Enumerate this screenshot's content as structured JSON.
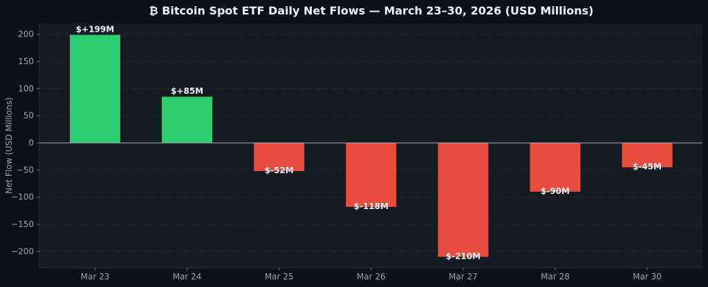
{
  "chart_data": {
    "type": "bar",
    "title": "₿ Bitcoin Spot ETF Daily Net Flows — March 23–30, 2026 (USD Millions)",
    "xlabel": "",
    "ylabel": "Net Flow (USD Millions)",
    "categories": [
      "Mar 23",
      "Mar 24",
      "Mar 25",
      "Mar 26",
      "Mar 27",
      "Mar 28",
      "Mar 30"
    ],
    "values": [
      199,
      85,
      -52,
      -118,
      -210,
      -90,
      -45
    ],
    "data_labels": [
      "$+199M",
      "$+85M",
      "$-52M",
      "$-118M",
      "$-210M",
      "$-90M",
      "$-45M"
    ],
    "ylim": [
      -230,
      220
    ],
    "yticks": [
      200,
      150,
      100,
      50,
      0,
      -50,
      -100,
      -150,
      -200
    ],
    "ytick_labels": [
      "200",
      "150",
      "100",
      "50",
      "0",
      "−50",
      "−100",
      "−150",
      "−200"
    ],
    "grid": true,
    "zero_line": true,
    "colors": {
      "positive": "#2ecc71",
      "negative": "#e74c3c",
      "background": "#0d1117",
      "plot_background": "#161b22",
      "text": "#f0f3f6",
      "tick_text": "#9aa4ae",
      "axis": "#30363d",
      "zero_line": "#aab2bb"
    }
  }
}
